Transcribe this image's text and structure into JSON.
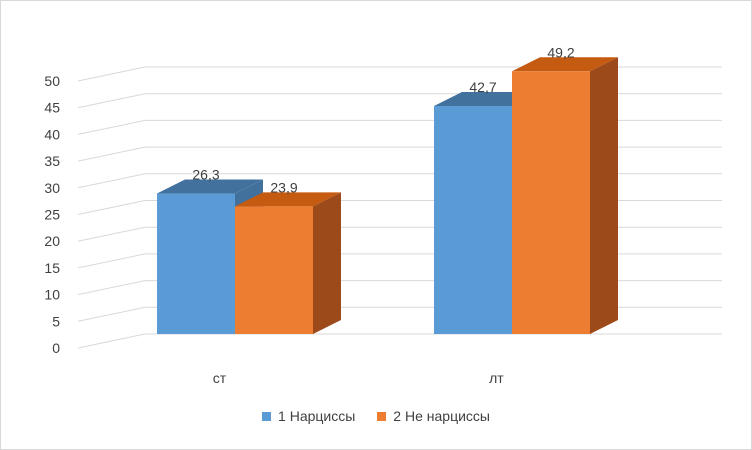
{
  "chart_data": {
    "type": "bar",
    "style": "3d-clustered-column",
    "categories": [
      "ст",
      "лт"
    ],
    "series": [
      {
        "name": "1 Нарциссы",
        "values": [
          26.3,
          42.7
        ],
        "labels": [
          "26,3",
          "42,7"
        ],
        "color": "#5b9bd5",
        "top_color": "#41719c",
        "side_color": "#41719c"
      },
      {
        "name": "2 Не нарциссы",
        "values": [
          23.9,
          49.2
        ],
        "labels": [
          "23,9",
          "49,2"
        ],
        "color": "#ed7d31",
        "top_color": "#c55a11",
        "side_color": "#9c4a1a"
      }
    ],
    "ylim": [
      0,
      50
    ],
    "yticks": [
      "0",
      "5",
      "10",
      "15",
      "20",
      "25",
      "30",
      "35",
      "40",
      "45",
      "50"
    ],
    "grid": true,
    "legend": "bottom"
  }
}
